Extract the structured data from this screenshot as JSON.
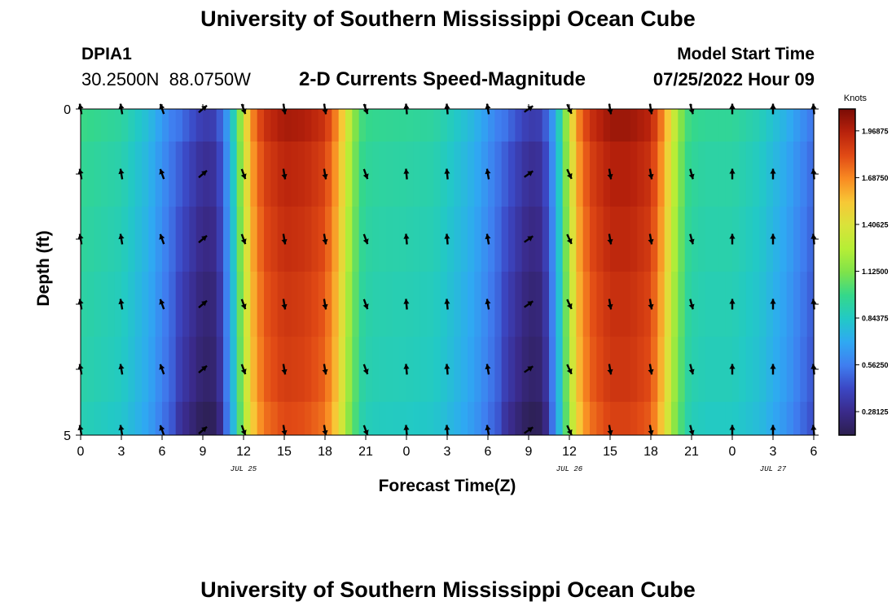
{
  "page": {
    "title": "University of Southern Mississippi Ocean Cube",
    "station_id": "DPIA1",
    "station_coords": "30.2500N  88.0750W",
    "subtitle": "2-D Currents Speed-Magnitude",
    "model_start_label": "Model Start Time",
    "model_start_value": "07/25/2022 Hour 09",
    "bottom_title": "University of Southern Mississippi Ocean Cube"
  },
  "colors": {
    "colormap": [
      "#2c1f4f",
      "#3a2a8a",
      "#3b47c4",
      "#3f7ef0",
      "#2fa9f2",
      "#22c9c6",
      "#35d88a",
      "#7fe34a",
      "#b6ee36",
      "#d9e33a",
      "#f7c836",
      "#f98b22",
      "#e14a15",
      "#b8220c",
      "#7a0b05"
    ],
    "arrow": "#000000"
  },
  "chart_data": {
    "type": "heatmap",
    "title": "2-D Currents Speed-Magnitude",
    "xlabel": "Forecast Time(Z)",
    "ylabel": "Depth (ft)",
    "x_unit": "hours since Jul 25 00Z",
    "xlim": [
      0,
      54
    ],
    "ylim": [
      0,
      5
    ],
    "x_ticks": [
      0,
      3,
      6,
      9,
      12,
      15,
      18,
      21,
      24,
      27,
      30,
      33,
      36,
      39,
      42,
      45,
      48,
      51,
      54
    ],
    "x_tick_labels": [
      "0",
      "3",
      "6",
      "9",
      "12",
      "15",
      "18",
      "21",
      "0",
      "3",
      "6",
      "9",
      "12",
      "15",
      "18",
      "21",
      "0",
      "3",
      "6"
    ],
    "y_tick_labels": [
      "0",
      "5"
    ],
    "date_labels": [
      {
        "label": "JUL 25",
        "x": 12
      },
      {
        "label": "JUL 26",
        "x": 36
      },
      {
        "label": "JUL 27",
        "x": 51
      }
    ],
    "colorbar": {
      "label": "Knots",
      "min": 0.14,
      "max": 2.1,
      "ticks": [
        "1.96875",
        "1.68750",
        "1.40625",
        "1.12500",
        "0.84375",
        "0.56250",
        "0.28125"
      ]
    },
    "depths": [
      0,
      1,
      2,
      3,
      4,
      5
    ],
    "speed_profile": {
      "x": [
        0,
        3,
        5,
        6.5,
        8,
        9,
        10,
        11,
        11.8,
        12.5,
        13.5,
        15,
        16.5,
        18,
        19,
        19.8,
        20.5,
        21,
        22,
        24,
        26,
        27,
        29,
        30.5,
        32,
        33,
        34,
        35,
        35.8,
        36.5,
        37.5,
        39,
        40.5,
        42,
        43,
        43.8,
        44.5,
        45,
        46,
        48,
        50,
        52,
        54
      ],
      "values": [
        0.96,
        0.9,
        0.75,
        0.56,
        0.4,
        0.3,
        0.32,
        0.7,
        1.15,
        1.6,
        1.85,
        1.95,
        1.93,
        1.85,
        1.6,
        1.25,
        1.0,
        0.95,
        0.93,
        0.92,
        0.9,
        0.85,
        0.72,
        0.56,
        0.4,
        0.3,
        0.32,
        0.7,
        1.15,
        1.6,
        1.85,
        1.97,
        1.97,
        1.9,
        1.6,
        1.25,
        1.0,
        0.95,
        0.92,
        0.92,
        0.85,
        0.7,
        0.5
      ]
    },
    "depth_offsets": [
      0.05,
      0.0,
      -0.03,
      -0.06,
      -0.08,
      -0.12
    ],
    "vectors": {
      "times": [
        0,
        3,
        6,
        9,
        12,
        15,
        18,
        21,
        24,
        27,
        30,
        33,
        36,
        39,
        42,
        45,
        48,
        51,
        54
      ],
      "depth_rows": [
        0,
        1,
        2,
        3,
        4,
        5
      ],
      "direction_deg_by_time": [
        350,
        350,
        340,
        50,
        160,
        170,
        170,
        160,
        355,
        355,
        350,
        55,
        155,
        170,
        170,
        165,
        0,
        0,
        355
      ]
    }
  }
}
